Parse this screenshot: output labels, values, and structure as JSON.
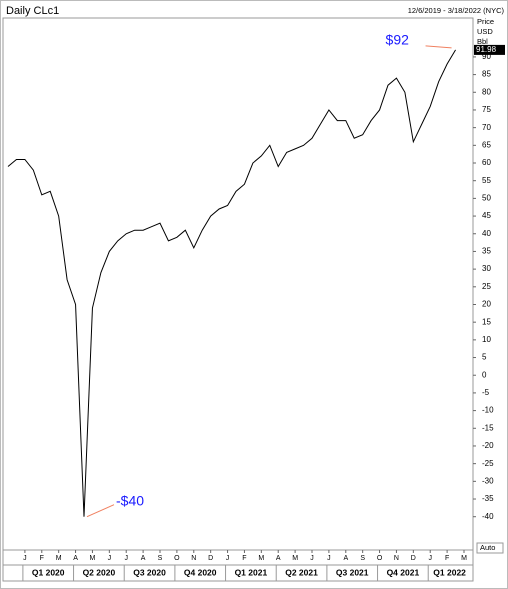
{
  "chart_data": {
    "type": "line",
    "title": "Daily CLc1",
    "subtitle": "12/6/2019 - 3/18/2022 (NYC)",
    "y_axis_header": [
      "Price",
      "USD",
      "Bbl"
    ],
    "last_price": 91.98,
    "scale_mode": "Auto",
    "annotations": [
      "$92",
      "-$40"
    ],
    "color": "#000000",
    "categories": [
      null,
      null,
      "J",
      null,
      "F",
      null,
      "M",
      null,
      "A",
      null,
      "M",
      null,
      "J",
      null,
      "J",
      null,
      "A",
      null,
      "S",
      null,
      "O",
      null,
      "N",
      null,
      "D",
      null,
      "J",
      null,
      "F",
      null,
      "M",
      null,
      "A",
      null,
      "M",
      null,
      "J",
      null,
      "J",
      null,
      "A",
      null,
      "S",
      null,
      "O",
      null,
      "N",
      null,
      "D",
      null,
      "J",
      null,
      "F",
      null,
      "M"
    ],
    "values": [
      59,
      61,
      61,
      58,
      51,
      52,
      45,
      27,
      20,
      -40,
      19,
      29,
      35,
      38,
      40,
      41,
      41,
      42,
      43,
      38,
      39,
      41,
      36,
      41,
      45,
      47,
      48,
      52,
      54,
      60,
      62,
      65,
      59,
      63,
      64,
      65,
      67,
      71,
      75,
      72,
      72,
      67,
      68,
      72,
      75,
      82,
      84,
      80,
      66,
      71,
      76,
      83,
      88,
      92,
      null
    ],
    "quarters": [
      "Q1 2020",
      "Q2 2020",
      "Q3 2020",
      "Q4 2020",
      "Q1 2021",
      "Q2 2021",
      "Q3 2021",
      "Q4 2021",
      "Q1 2022"
    ],
    "ylim": [
      -48,
      101
    ],
    "yticks": [
      90,
      85,
      80,
      75,
      70,
      65,
      60,
      55,
      50,
      45,
      40,
      35,
      30,
      25,
      20,
      15,
      10,
      5,
      0,
      -5,
      -10,
      -15,
      -20,
      -25,
      -30,
      -35,
      -40
    ],
    "grid": false
  }
}
